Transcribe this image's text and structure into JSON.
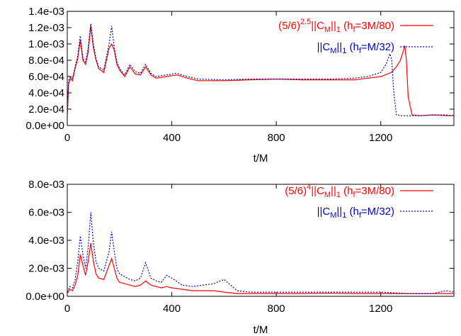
{
  "chart_data": [
    {
      "type": "line",
      "xlabel": "t/M",
      "ylabel": "",
      "xlim": [
        0,
        1480
      ],
      "ylim": [
        0,
        0.0014
      ],
      "x_ticks": [
        "0",
        "400",
        "800",
        "1200"
      ],
      "y_ticks": [
        "0.0e+00",
        "2.0e-04",
        "4.0e-04",
        "6.0e-04",
        "8.0e-04",
        "1.0e-03",
        "1.2e-03",
        "1.4e-03"
      ],
      "legend_position": "top-right",
      "series": [
        {
          "name": "(5/6)^2.5||C_M||_1 (h_f=3M/80)",
          "legend": {
            "pre": "(5/6)",
            "exp": "2.5",
            "mid": "||C",
            "sub1": "M",
            "mid2": "||",
            "sub2": "1",
            "mid3": " (h",
            "sub3": "f",
            "post": "=3M/80)"
          },
          "color": "#ff0000",
          "style": "solid",
          "x": [
            0,
            5,
            12,
            20,
            30,
            40,
            50,
            60,
            70,
            80,
            90,
            100,
            110,
            120,
            140,
            160,
            170,
            180,
            190,
            200,
            220,
            240,
            260,
            280,
            300,
            320,
            340,
            380,
            420,
            460,
            500,
            600,
            700,
            800,
            900,
            1000,
            1100,
            1150,
            1200,
            1240,
            1260,
            1275,
            1285,
            1292,
            1298,
            1305,
            1320,
            1350,
            1400,
            1450,
            1480
          ],
          "y": [
            0.0001,
            0.0005,
            0.00058,
            0.00055,
            0.0007,
            0.00082,
            0.00105,
            0.0008,
            0.00075,
            0.0009,
            0.00122,
            0.00095,
            0.0008,
            0.0007,
            0.00065,
            0.00095,
            0.001,
            0.00092,
            0.00075,
            0.00068,
            0.0006,
            0.00072,
            0.00063,
            0.00062,
            0.00072,
            0.00062,
            0.00058,
            0.0006,
            0.00062,
            0.00058,
            0.00055,
            0.00055,
            0.00056,
            0.00057,
            0.00056,
            0.00056,
            0.00056,
            0.00058,
            0.0006,
            0.00065,
            0.00072,
            0.0008,
            0.0009,
            0.00098,
            0.0008,
            0.00035,
            0.00013,
            0.00012,
            0.00013,
            0.00012,
            0.00012
          ]
        },
        {
          "name": "||C_M||_1 (h_f=M/32)",
          "legend": {
            "pre": "",
            "exp": "",
            "mid": "||C",
            "sub1": "M",
            "mid2": "||",
            "sub2": "1",
            "mid3": " (h",
            "sub3": "f",
            "post": "=M/32)"
          },
          "color": "#0000cc",
          "style": "dotted",
          "x": [
            0,
            5,
            12,
            20,
            30,
            40,
            50,
            60,
            70,
            80,
            90,
            100,
            110,
            120,
            140,
            160,
            170,
            180,
            190,
            200,
            220,
            240,
            260,
            280,
            300,
            320,
            340,
            380,
            420,
            460,
            500,
            600,
            700,
            800,
            900,
            1000,
            1100,
            1150,
            1200,
            1220,
            1235,
            1242,
            1250,
            1260,
            1280,
            1300,
            1350,
            1400,
            1450,
            1480
          ],
          "y": [
            0.0001,
            0.00055,
            0.0006,
            0.00058,
            0.00072,
            0.00085,
            0.0011,
            0.00082,
            0.00078,
            0.00095,
            0.00125,
            0.001,
            0.00082,
            0.00072,
            0.00068,
            0.001,
            0.00122,
            0.00095,
            0.00078,
            0.0007,
            0.00062,
            0.00075,
            0.00066,
            0.00064,
            0.00075,
            0.00064,
            0.0006,
            0.00062,
            0.00064,
            0.0006,
            0.00057,
            0.00056,
            0.00057,
            0.00057,
            0.00057,
            0.00057,
            0.00058,
            0.0006,
            0.00065,
            0.00075,
            0.00088,
            0.0008,
            0.0004,
            0.00013,
            0.00012,
            0.00012,
            0.00012,
            0.00013,
            0.00013,
            0.00012
          ]
        }
      ]
    },
    {
      "type": "line",
      "xlabel": "t/M",
      "ylabel": "",
      "xlim": [
        0,
        1480
      ],
      "ylim": [
        0,
        0.008
      ],
      "x_ticks": [
        "0",
        "400",
        "800",
        "1200"
      ],
      "y_ticks": [
        "0.0e+00",
        "2.0e-03",
        "4.0e-03",
        "6.0e-03",
        "8.0e-03"
      ],
      "legend_position": "top-right",
      "series": [
        {
          "name": "(5/6)^4||C_M||_1 (h_f=3M/80)",
          "legend": {
            "pre": "(5/6)",
            "exp": "4",
            "mid": "||C",
            "sub1": "M",
            "mid2": "||",
            "sub2": "1",
            "mid3": " (h",
            "sub3": "f",
            "post": "=3M/80)"
          },
          "color": "#ff0000",
          "style": "solid",
          "x": [
            0,
            10,
            20,
            30,
            40,
            50,
            60,
            70,
            80,
            90,
            100,
            110,
            120,
            140,
            160,
            170,
            180,
            190,
            200,
            220,
            240,
            260,
            280,
            300,
            320,
            340,
            360,
            380,
            400,
            440,
            480,
            520,
            560,
            600,
            650,
            700,
            800,
            900,
            1000,
            1100,
            1200,
            1300,
            1400,
            1450,
            1480
          ],
          "y": [
            0.0002,
            0.0005,
            0.0004,
            0.0008,
            0.0015,
            0.003,
            0.0022,
            0.0015,
            0.0025,
            0.0038,
            0.0025,
            0.0016,
            0.0013,
            0.0012,
            0.0022,
            0.0027,
            0.002,
            0.0013,
            0.001,
            0.0009,
            0.0008,
            0.0007,
            0.0008,
            0.0011,
            0.0008,
            0.0007,
            0.0006,
            0.0007,
            0.0006,
            0.0005,
            0.0004,
            0.0004,
            0.0004,
            0.0003,
            0.0002,
            0.0002,
            0.0002,
            0.0002,
            0.00022,
            0.0002,
            0.0002,
            0.0002,
            0.0002,
            0.0002,
            0.0002
          ]
        },
        {
          "name": "||C_M||_1 (h_f=M/32)",
          "legend": {
            "pre": "",
            "exp": "",
            "mid": "||C",
            "sub1": "M",
            "mid2": "||",
            "sub2": "1",
            "mid3": " (h",
            "sub3": "f",
            "post": "=M/32)"
          },
          "color": "#0000cc",
          "style": "dotted",
          "x": [
            0,
            10,
            20,
            30,
            40,
            50,
            60,
            70,
            80,
            90,
            100,
            110,
            120,
            140,
            160,
            170,
            180,
            190,
            200,
            220,
            240,
            260,
            280,
            300,
            320,
            340,
            360,
            380,
            400,
            440,
            480,
            520,
            560,
            600,
            650,
            700,
            800,
            900,
            1000,
            1100,
            1200,
            1300,
            1400,
            1450,
            1480
          ],
          "y": [
            0.0003,
            0.0007,
            0.0006,
            0.0012,
            0.0025,
            0.0043,
            0.003,
            0.002,
            0.0035,
            0.006,
            0.0038,
            0.0025,
            0.002,
            0.0018,
            0.0032,
            0.0046,
            0.0032,
            0.002,
            0.0016,
            0.0014,
            0.0012,
            0.0011,
            0.0013,
            0.0024,
            0.0013,
            0.0011,
            0.001,
            0.0015,
            0.0013,
            0.0008,
            0.0007,
            0.0008,
            0.0009,
            0.0012,
            0.0004,
            0.0003,
            0.0003,
            0.0003,
            0.0003,
            0.0003,
            0.0003,
            0.0002,
            0.0002,
            0.0004,
            0.0003
          ]
        }
      ]
    }
  ]
}
